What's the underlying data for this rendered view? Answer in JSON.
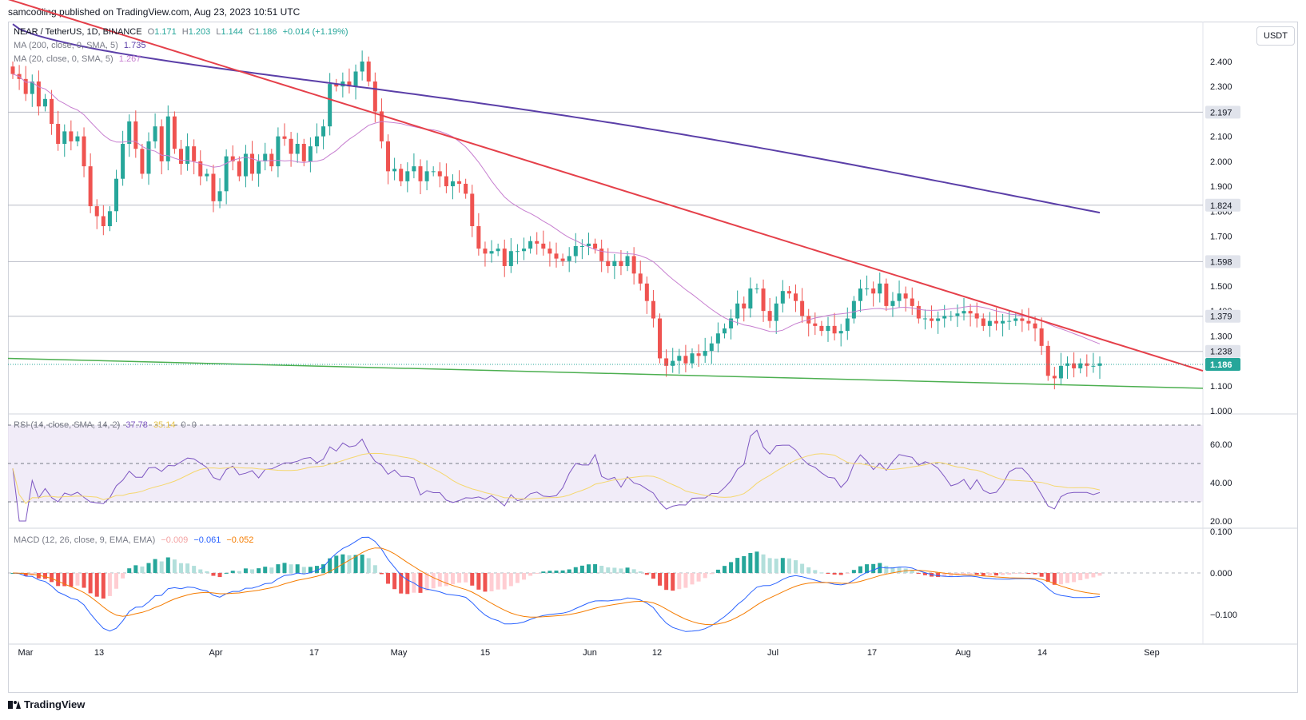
{
  "header": {
    "published": "samcooling published on TradingView.com, Aug 23, 2023 10:51 UTC"
  },
  "currency_button": "USDT",
  "main_legend": {
    "symbol": "NEAR / TetherUS, 1D, BINANCE",
    "open_label": "O",
    "open": "1.171",
    "high_label": "H",
    "high": "1.203",
    "low_label": "L",
    "low": "1.144",
    "close_label": "C",
    "close": "1.186",
    "change": "+0.014 (+1.19%)"
  },
  "ma200_legend": {
    "label": "MA (200, close, 0, SMA, 5)",
    "value": "1.735"
  },
  "ma20_legend": {
    "label": "MA (20, close, 0, SMA, 5)",
    "value": "1.267"
  },
  "rsi_legend": {
    "label": "RSI (14, close, SMA, 14, 2)",
    "rsi": "37.78",
    "ma": "35.14",
    "a": "0",
    "b": "0"
  },
  "macd_legend": {
    "label": "MACD (12, 26, close, 9, EMA, EMA)",
    "hist": "−0.009",
    "macd": "−0.061",
    "signal": "−0.052"
  },
  "footer": {
    "brand": "TradingView"
  },
  "colors": {
    "up": "#26a69a",
    "down": "#ef5350",
    "ma200": "#5b3fa8",
    "ma20": "#c77fd0",
    "trend_red": "#e5404a",
    "trend_green": "#4caf50",
    "rsi": "#7e57c2",
    "rsi_ma": "#f5d76e",
    "macd": "#2962ff",
    "signal": "#f57c00"
  },
  "chart_data": [
    {
      "type": "candlestick",
      "name": "NEAR / TetherUS, 1D, BINANCE",
      "price_ticks": [
        "2.400",
        "2.300",
        "2.200",
        "2.100",
        "2.000",
        "1.900",
        "1.800",
        "1.700",
        "1.600",
        "1.500",
        "1.400",
        "1.300",
        "1.200",
        "1.100",
        "1.000"
      ],
      "price_levels": [
        "2.197",
        "1.824",
        "1.598",
        "1.379",
        "1.238"
      ],
      "current_price": "1.186",
      "x_labels": [
        "Mar",
        "13",
        "Apr",
        "17",
        "May",
        "15",
        "Jun",
        "12",
        "Jul",
        "17",
        "Aug",
        "14",
        "Sep"
      ],
      "closes": [
        2.35,
        2.33,
        2.27,
        2.32,
        2.22,
        2.25,
        2.15,
        2.07,
        2.12,
        2.08,
        2.1,
        1.98,
        1.82,
        1.78,
        1.74,
        1.8,
        1.93,
        2.07,
        2.16,
        2.05,
        1.95,
        2.08,
        2.14,
        2.0,
        2.18,
        2.05,
        1.99,
        2.06,
        2.0,
        1.94,
        1.95,
        1.84,
        1.88,
        2.02,
        2.0,
        1.94,
        2.03,
        1.95,
        2.0,
        2.03,
        1.98,
        2.1,
        2.09,
        2.03,
        2.07,
        2.0,
        2.06,
        2.1,
        2.14,
        2.31,
        2.3,
        2.32,
        2.3,
        2.36,
        2.4,
        2.32,
        2.2,
        2.08,
        1.96,
        1.97,
        1.92,
        1.96,
        1.98,
        1.92,
        1.96,
        1.96,
        1.94,
        1.9,
        1.92,
        1.91,
        1.87,
        1.74,
        1.65,
        1.63,
        1.64,
        1.65,
        1.58,
        1.64,
        1.64,
        1.65,
        1.68,
        1.67,
        1.65,
        1.63,
        1.61,
        1.6,
        1.62,
        1.66,
        1.66,
        1.67,
        1.65,
        1.6,
        1.58,
        1.6,
        1.58,
        1.62,
        1.55,
        1.51,
        1.44,
        1.37,
        1.21,
        1.18,
        1.2,
        1.22,
        1.19,
        1.23,
        1.22,
        1.24,
        1.27,
        1.31,
        1.33,
        1.37,
        1.43,
        1.41,
        1.49,
        1.49,
        1.4,
        1.36,
        1.43,
        1.48,
        1.47,
        1.44,
        1.38,
        1.35,
        1.34,
        1.32,
        1.34,
        1.31,
        1.32,
        1.37,
        1.44,
        1.49,
        1.49,
        1.47,
        1.51,
        1.42,
        1.44,
        1.47,
        1.45,
        1.42,
        1.37,
        1.37,
        1.36,
        1.37,
        1.38,
        1.38,
        1.39,
        1.4,
        1.39,
        1.37,
        1.34,
        1.36,
        1.35,
        1.36,
        1.36,
        1.37,
        1.36,
        1.35,
        1.33,
        1.26,
        1.14,
        1.13,
        1.18,
        1.19,
        1.17,
        1.19,
        1.18,
        1.18,
        1.19
      ],
      "ma200_value": "1.735",
      "ma20_value": "1.267",
      "trendlines": [
        {
          "name": "descending resistance",
          "from": [
            "Mar",
            2.65
          ],
          "to": [
            "Sep",
            1.16
          ]
        },
        {
          "name": "ascending support",
          "from": [
            "Mar",
            1.21
          ],
          "to": [
            "Sep",
            1.09
          ]
        }
      ]
    },
    {
      "type": "line",
      "name": "RSI",
      "y_ticks": [
        "60.00",
        "40.00",
        "20.00"
      ],
      "bands": [
        70,
        50,
        30
      ],
      "rsi_value": "37.78",
      "rsi_ma_value": "35.14"
    },
    {
      "type": "bar",
      "name": "MACD",
      "y_ticks": [
        "0.100",
        "0.000",
        "−0.100"
      ],
      "macd_value": "−0.061",
      "signal_value": "−0.052",
      "histogram_value": "−0.009"
    }
  ]
}
